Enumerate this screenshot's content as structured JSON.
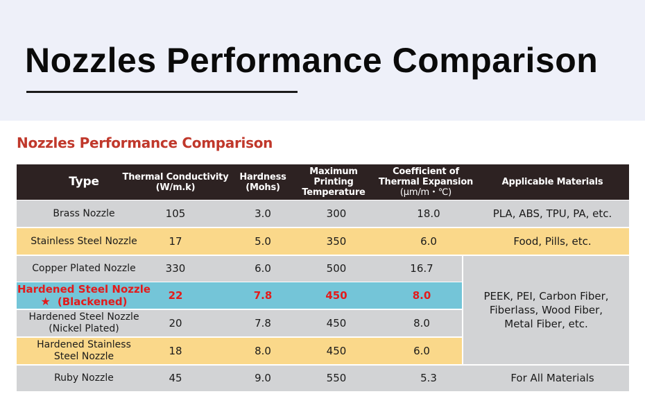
{
  "page": {
    "title": "Nozzles Performance Comparison",
    "subtitle": "Nozzles Performance Comparison"
  },
  "table": {
    "headers": {
      "type": "Type",
      "conductivity": [
        "Thermal Conductivity",
        "(W/m.k)"
      ],
      "hardness": [
        "Hardness",
        "(Mohs)"
      ],
      "temperature": [
        "Maximum",
        "Printing",
        "Temperature"
      ],
      "expansion": [
        "Coefficient of",
        "Thermal Expansion",
        "(μm/m・℃)"
      ],
      "materials": "Applicable Materials"
    },
    "rows": [
      {
        "name": [
          "Brass Nozzle"
        ],
        "conductivity": "105",
        "hardness": "3.0",
        "temperature": "300",
        "expansion": "18.0",
        "materials": [
          "PLA, ABS, TPU, PA, etc."
        ]
      },
      {
        "name": [
          "Stainless Steel Nozzle"
        ],
        "conductivity": "17",
        "hardness": "5.0",
        "temperature": "350",
        "expansion": "6.0",
        "materials": [
          "Food, Pills, etc."
        ]
      },
      {
        "name": [
          "Copper Plated Nozzle"
        ],
        "conductivity": "330",
        "hardness": "6.0",
        "temperature": "500",
        "expansion": "16.7"
      },
      {
        "name": [
          "Hardened Steel Nozzle",
          "(Blackened)"
        ],
        "star": "★",
        "conductivity": "22",
        "hardness": "7.8",
        "temperature": "450",
        "expansion": "8.0"
      },
      {
        "name": [
          "Hardened Steel Nozzle",
          "(Nickel Plated)"
        ],
        "conductivity": "20",
        "hardness": "7.8",
        "temperature": "450",
        "expansion": "8.0"
      },
      {
        "name": [
          "Hardened Stainless",
          "Steel Nozzle"
        ],
        "conductivity": "18",
        "hardness": "8.0",
        "temperature": "450",
        "expansion": "6.0"
      },
      {
        "name": [
          "Ruby Nozzle"
        ],
        "conductivity": "45",
        "hardness": "9.0",
        "temperature": "550",
        "expansion": "5.3",
        "materials": [
          "For All Materials"
        ]
      }
    ],
    "merged_materials": [
      "PEEK, PEI, Carbon Fiber,",
      "Fiberlass, Wood Fiber,",
      "Metal Fiber, etc."
    ]
  },
  "colors": {
    "header": "#2d2222",
    "gray_row": "#d2d3d5",
    "yellow_row": "#fad88a",
    "highlight_row": "#74c5d8",
    "highlight_text": "#e31b1b",
    "subtitle": "#c0382b"
  }
}
